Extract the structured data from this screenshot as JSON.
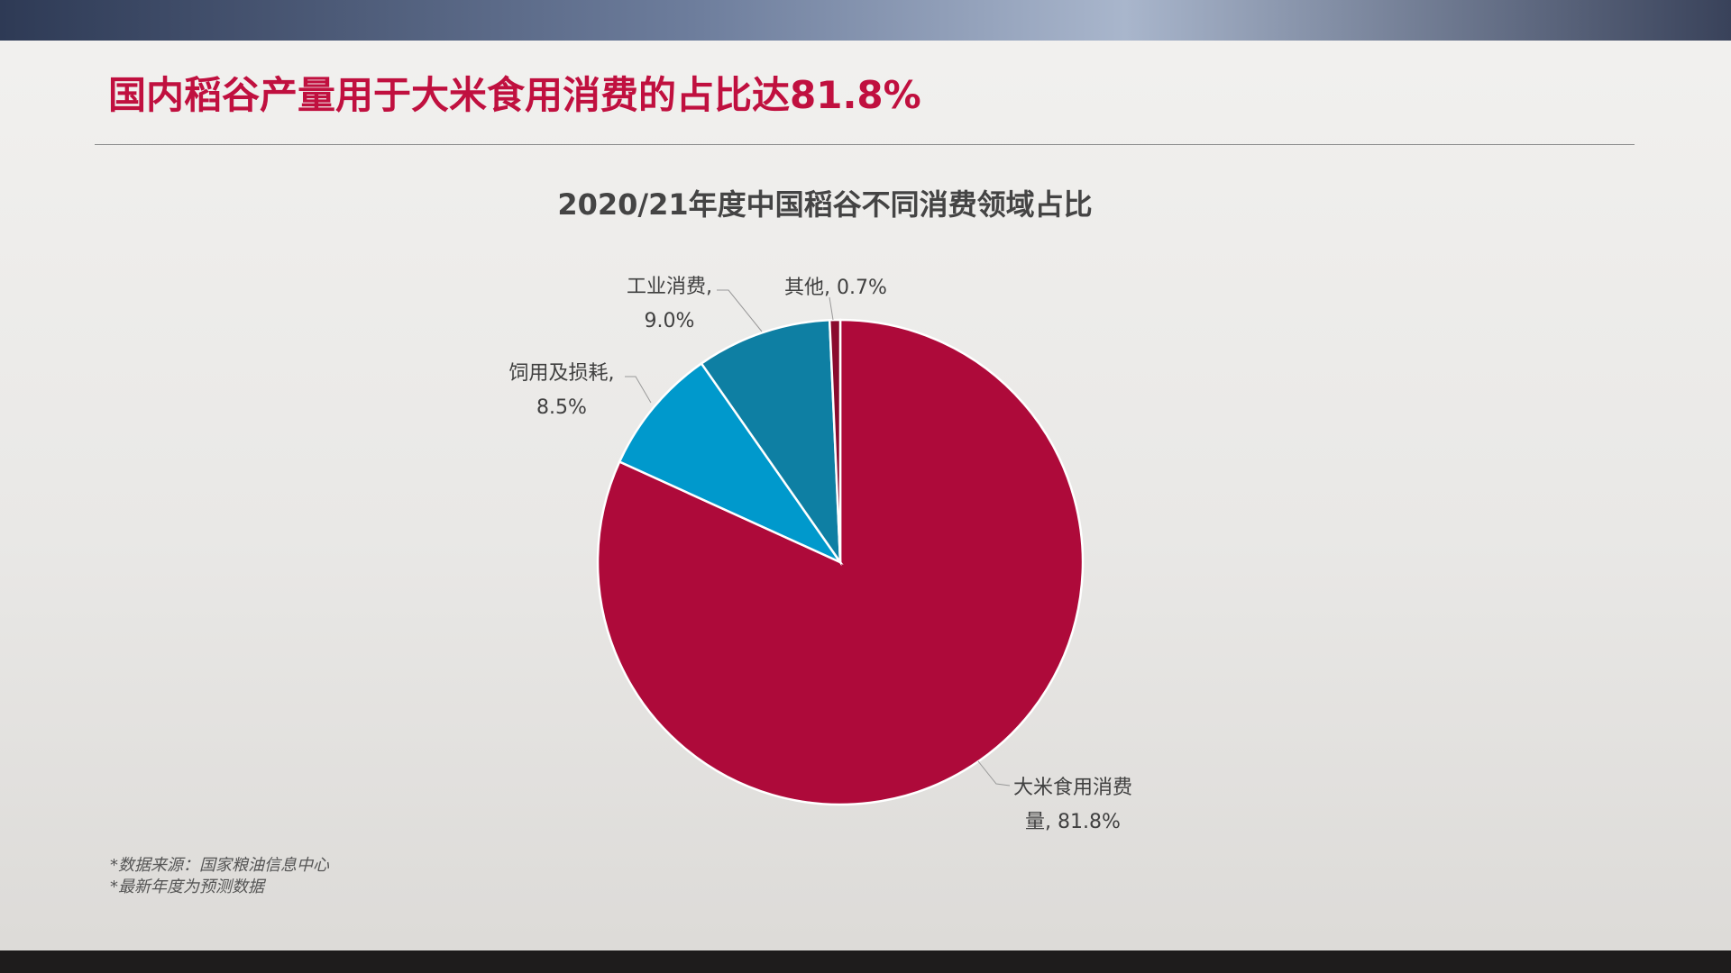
{
  "header": {
    "title": "国内稻谷产量用于大米食用消费的占比达81.8%"
  },
  "chart_data": {
    "type": "pie",
    "title": "2020/21年度中国稻谷不同消费领域占比",
    "categories": [
      "大米食用消费量",
      "饲用及损耗",
      "工业消费",
      "其他"
    ],
    "values": [
      81.8,
      8.5,
      9.0,
      0.7
    ],
    "value_labels": [
      "大米食用消费量, 81.8%",
      "饲用及损耗, 8.5%",
      "工业消费, 9.0%",
      "其他, 0.7%"
    ],
    "colors": [
      "#ae0a3a",
      "#0099cc",
      "#0e7fa3",
      "#8a0a2e"
    ]
  },
  "footnotes": [
    "*数据来源：国家粮油信息中心",
    "*最新年度为预测数据"
  ]
}
